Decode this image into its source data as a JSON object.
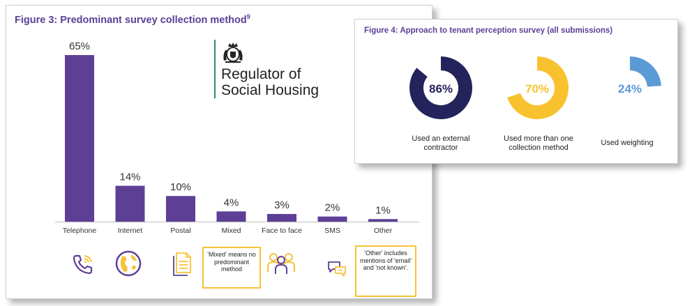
{
  "figure3": {
    "title": "Figure 3: Predominant survey collection method",
    "title_sup": "9",
    "bar_color": "#5e3f96",
    "notes": {
      "mixed": "'Mixed' means no predominant method",
      "other": "'Other' includes mentions of 'email' and 'not known'."
    },
    "icons": [
      "phone-icon",
      "globe-icon",
      "document-icon",
      "people-icon",
      "chat-icon"
    ]
  },
  "logo": {
    "line1": "Regulator of",
    "line2": "Social Housing"
  },
  "figure4": {
    "title": "Figure 4: Approach to tenant perception survey (all submissions)"
  },
  "chart_data": [
    {
      "type": "bar",
      "title": "Figure 3: Predominant survey collection method",
      "categories": [
        "Telephone",
        "Internet",
        "Postal",
        "Mixed",
        "Face to face",
        "SMS",
        "Other"
      ],
      "values": [
        65,
        14,
        10,
        4,
        3,
        2,
        1
      ],
      "value_labels": [
        "65%",
        "14%",
        "10%",
        "4%",
        "3%",
        "2%",
        "1%"
      ],
      "ylim": [
        0,
        65
      ],
      "grid": false,
      "color": "#5e3f96"
    },
    {
      "type": "pie",
      "title": "Figure 4: Approach to tenant perception survey (all submissions)",
      "items": [
        {
          "label": "Used an external contractor",
          "value": 86,
          "value_label": "86%",
          "color": "#24235c"
        },
        {
          "label": "Used more than one collection method",
          "value": 70,
          "value_label": "70%",
          "color": "#f8c22f"
        },
        {
          "label": "Used weighting",
          "value": 24,
          "value_label": "24%",
          "color": "#5b9bd5"
        }
      ]
    }
  ]
}
